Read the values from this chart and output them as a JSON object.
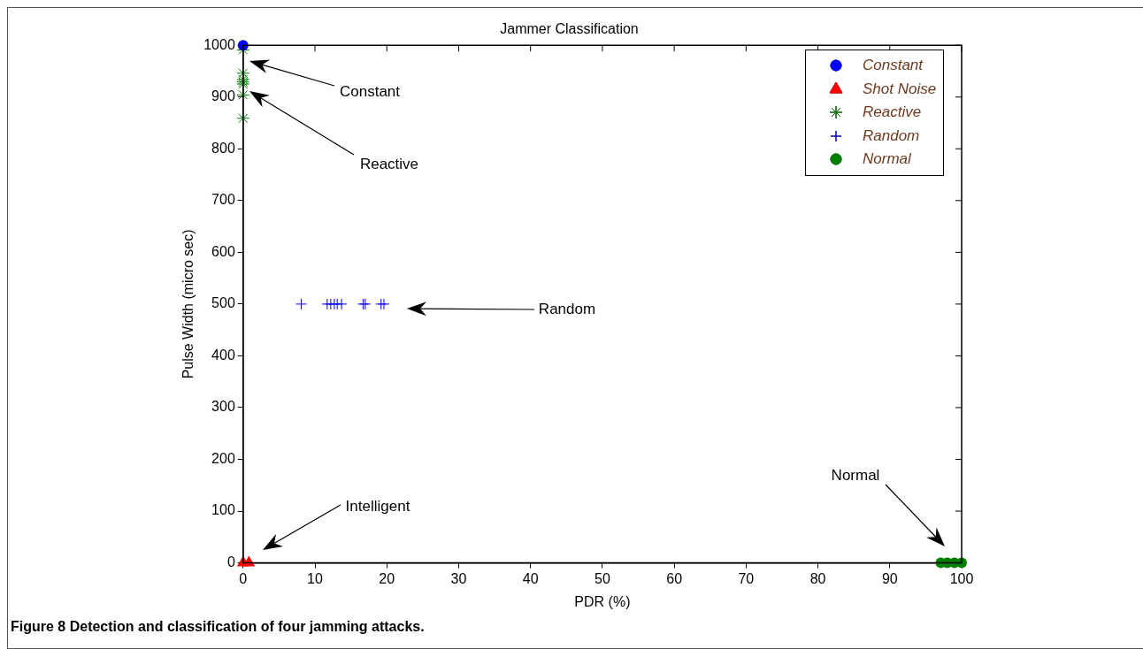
{
  "chart_data": {
    "type": "scatter",
    "title": "Jammer Classification",
    "xlabel": "PDR (%)",
    "ylabel": "Pulse Width (micro sec)",
    "xlim": [
      0,
      100
    ],
    "xticks": [
      0,
      10,
      20,
      30,
      40,
      50,
      60,
      70,
      80,
      90,
      100
    ],
    "ylim": [
      0,
      1000
    ],
    "yticks": [
      0,
      100,
      200,
      300,
      400,
      500,
      600,
      700,
      800,
      900,
      1000
    ],
    "grid": false,
    "legend": "top right",
    "series": [
      {
        "name": "Constant",
        "color": "#0000ff",
        "marker": "circle",
        "x": [
          0
        ],
        "values": [
          1000
        ]
      },
      {
        "name": "Shot Noise",
        "color": "#ff0000",
        "marker": "triangle",
        "x": [
          0,
          0.8
        ],
        "values": [
          0,
          0
        ]
      },
      {
        "name": "Reactive",
        "color": "#008000",
        "x": [
          0,
          0,
          0,
          0,
          0,
          0,
          0
        ],
        "values": [
          991,
          946,
          934,
          929,
          925,
          904,
          859
        ]
      },
      {
        "name": "Random",
        "color": "#0000ff",
        "marker": "cross",
        "x": [
          8.1,
          11.7,
          12.2,
          12.7,
          13.1,
          13.7,
          16.7,
          17.0,
          19.2,
          19.6
        ],
        "values": [
          500,
          500,
          500,
          500,
          500,
          500,
          500,
          500,
          500,
          500
        ]
      },
      {
        "name": "Normal",
        "color": "#008000",
        "marker": "circle",
        "x": [
          97.1,
          98.0,
          99.0,
          100
        ],
        "values": [
          0,
          0,
          0,
          0
        ]
      }
    ],
    "annotations": [
      "Constant",
      "Reactive",
      "Random",
      "Intelligent",
      "Normal",
      "Figure 8 Detection and classification of four jamming attacks."
    ]
  }
}
